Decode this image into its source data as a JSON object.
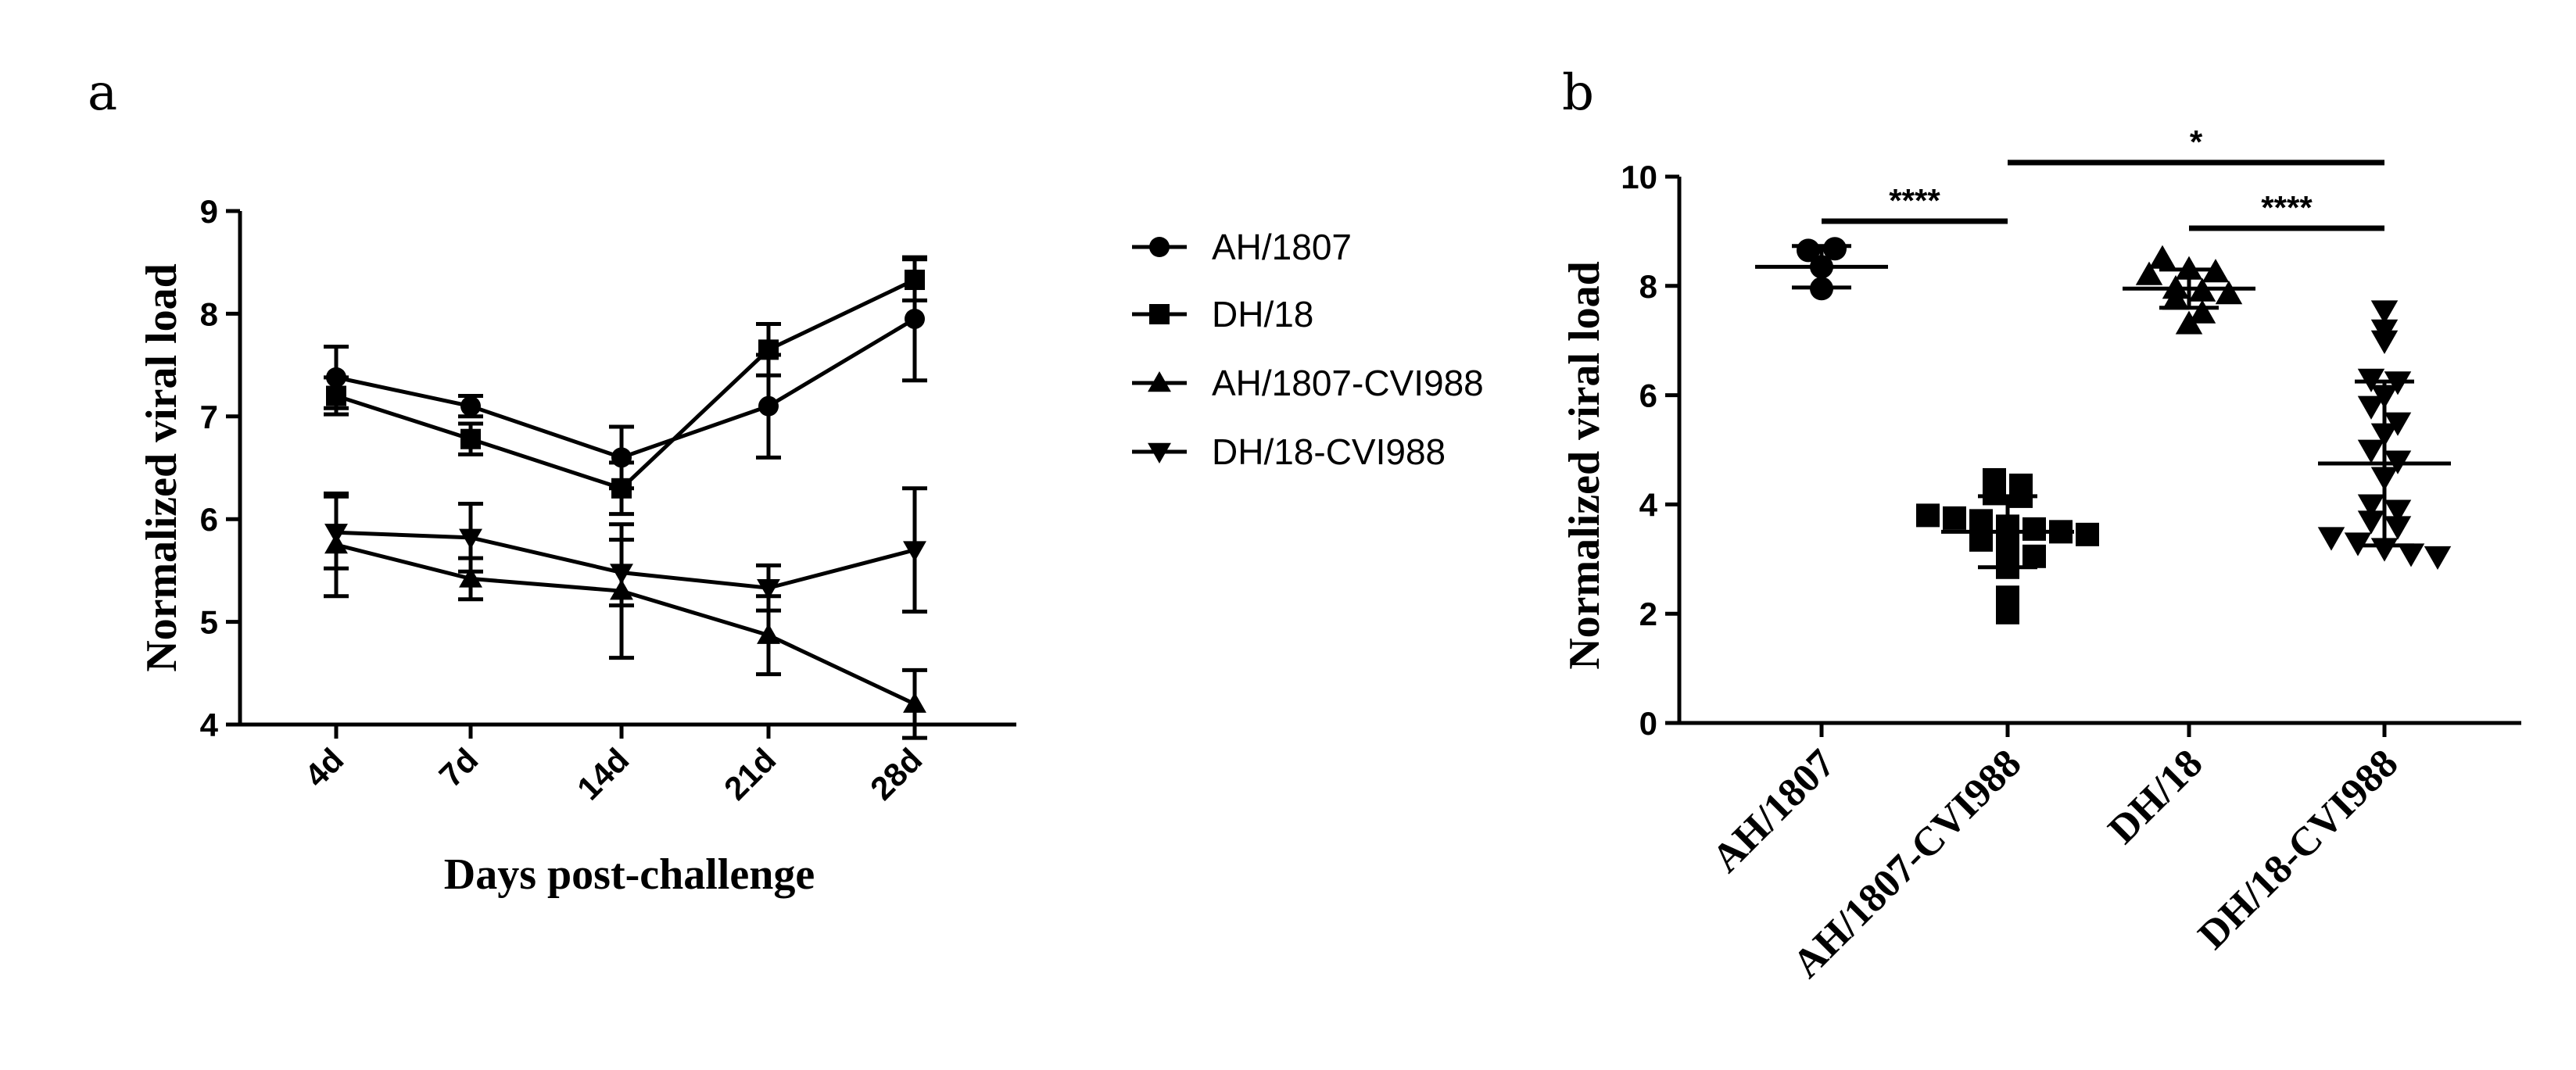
{
  "chart_data": [
    {
      "panel": "a",
      "type": "line",
      "xlabel": "Days post-challenge",
      "ylabel": "Normalized viral load",
      "categories": [
        "4d",
        "7d",
        "14d",
        "21d",
        "28d"
      ],
      "ylim": [
        4,
        9
      ],
      "yticks": [
        4,
        5,
        6,
        7,
        8,
        9
      ],
      "legend": "right",
      "series": [
        {
          "name": "AH/1807",
          "marker": "circle",
          "values": [
            7.38,
            7.1,
            6.6,
            7.1,
            7.95
          ],
          "errors": [
            0.3,
            0.1,
            0.3,
            0.5,
            0.6
          ]
        },
        {
          "name": "DH/18",
          "marker": "square",
          "values": [
            7.2,
            6.78,
            6.3,
            7.65,
            8.33
          ],
          "errors": [
            0.18,
            0.15,
            0.25,
            0.25,
            0.2
          ]
        },
        {
          "name": "AH/1807-CVI988",
          "marker": "triangle-up",
          "values": [
            5.75,
            5.42,
            5.3,
            4.87,
            4.2
          ],
          "errors": [
            0.5,
            0.2,
            0.65,
            0.38,
            0.33
          ]
        },
        {
          "name": "DH/18-CVI988",
          "marker": "triangle-down",
          "values": [
            5.87,
            5.82,
            5.48,
            5.33,
            5.7
          ],
          "errors": [
            0.35,
            0.33,
            0.32,
            0.22,
            0.6
          ]
        }
      ]
    },
    {
      "panel": "b",
      "type": "scatter",
      "xlabel": "",
      "ylabel": "Normalized viral load",
      "categories": [
        "AH/1807",
        "AH/1807-CVI988",
        "DH/18",
        "DH/18-CVI988"
      ],
      "ylim": [
        0,
        10
      ],
      "yticks": [
        0,
        2,
        4,
        6,
        8,
        10
      ],
      "groups": [
        {
          "name": "AH/1807",
          "marker": "circle",
          "mean": 8.35,
          "sd": 0.38,
          "points": [
            8.65,
            8.68,
            8.35,
            7.95
          ]
        },
        {
          "name": "AH/1807-CVI988",
          "marker": "square",
          "mean": 3.5,
          "sd": 0.65,
          "points": [
            4.45,
            4.35,
            4.2,
            4.15,
            3.8,
            3.75,
            3.7,
            3.6,
            3.55,
            3.5,
            3.45,
            3.35,
            3.2,
            3.05,
            2.85,
            2.3,
            2.02
          ]
        },
        {
          "name": "DH/18",
          "marker": "triangle-up",
          "mean": 7.95,
          "sd": 0.35,
          "points": [
            8.5,
            8.3,
            8.25,
            8.2,
            7.95,
            7.9,
            7.85,
            7.75,
            7.5,
            7.3
          ]
        },
        {
          "name": "DH/18-CVI988",
          "marker": "triangle-down",
          "mean": 4.75,
          "sd": 1.5,
          "points": [
            7.55,
            7.2,
            7.0,
            6.3,
            6.25,
            6.0,
            5.8,
            5.5,
            5.3,
            5.0,
            4.8,
            4.5,
            4.0,
            3.9,
            3.7,
            3.6,
            3.4,
            3.3,
            3.2,
            3.1,
            3.05
          ]
        }
      ],
      "significance": [
        {
          "from": "AH/1807",
          "to": "AH/1807-CVI988",
          "label": "****"
        },
        {
          "from": "AH/1807-CVI988",
          "to": "DH/18-CVI988",
          "label": "*"
        },
        {
          "from": "DH/18",
          "to": "DH/18-CVI988",
          "label": "****"
        }
      ]
    }
  ]
}
